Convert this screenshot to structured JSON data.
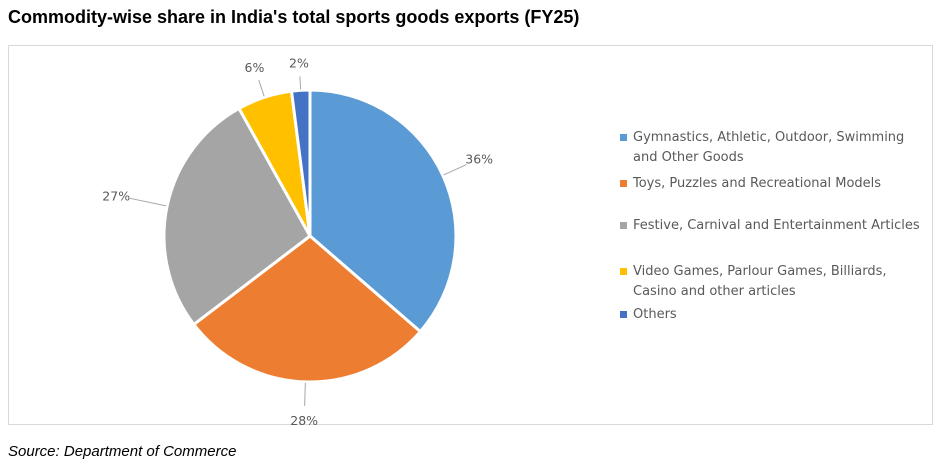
{
  "chart_data": {
    "type": "pie",
    "title": "Commodity-wise share in India's total sports goods exports (FY25)",
    "source": "Source: Department of Commerce",
    "legend_position": "right",
    "slices": [
      {
        "name": "Gymnastics, Athletic, Outdoor, Swimming and Other Goods",
        "value": 36,
        "label": "36%",
        "color": "#5b9bd5"
      },
      {
        "name": "Toys, Puzzles and Recreational Models",
        "value": 28,
        "label": "28%",
        "color": "#ed7d31"
      },
      {
        "name": "Festive, Carnival and Entertainment Articles",
        "value": 27,
        "label": "27%",
        "color": "#a5a5a5"
      },
      {
        "name": "Video Games, Parlour Games, Billiards, Casino and other articles",
        "value": 6,
        "label": "6%",
        "color": "#ffc000"
      },
      {
        "name": "Others",
        "value": 2,
        "label": "2%",
        "color": "#4472c4"
      }
    ]
  }
}
